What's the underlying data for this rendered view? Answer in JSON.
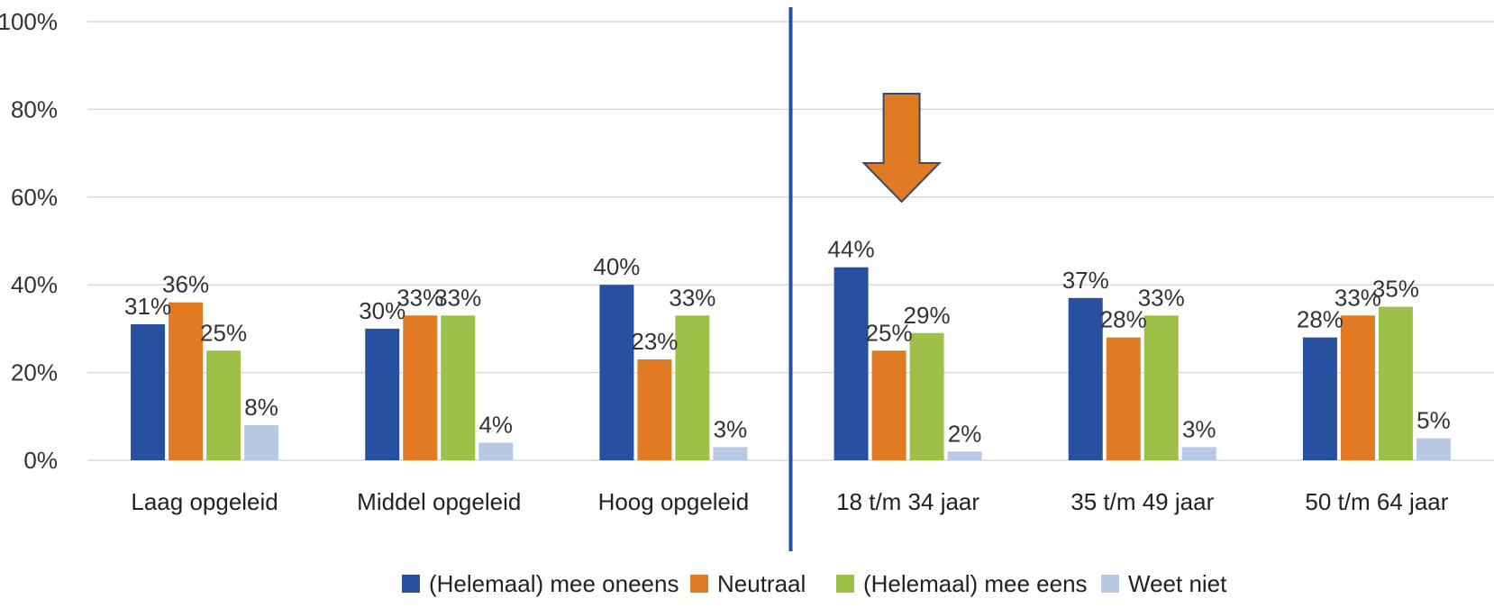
{
  "chart_data": {
    "type": "bar",
    "categories": [
      "Laag opgeleid",
      "Middel opgeleid",
      "Hoog opgeleid",
      "18 t/m 34 jaar",
      "35 t/m 49 jaar",
      "50 t/m 64 jaar"
    ],
    "series": [
      {
        "name": "(Helemaal) mee oneens",
        "color": "#2750A0",
        "values": [
          31,
          30,
          40,
          44,
          37,
          28
        ]
      },
      {
        "name": "Neutraal",
        "color": "#E07B24",
        "values": [
          36,
          33,
          23,
          25,
          28,
          33
        ]
      },
      {
        "name": "(Helemaal) mee eens",
        "color": "#9DC148",
        "values": [
          25,
          33,
          33,
          29,
          33,
          35
        ]
      },
      {
        "name": "Weet niet",
        "color": "#B8C9E4",
        "values": [
          8,
          4,
          3,
          2,
          3,
          5
        ]
      }
    ],
    "data_labels": [
      [
        "31%",
        "36%",
        "25%",
        "8%"
      ],
      [
        "30%",
        "33%",
        "33%",
        "4%"
      ],
      [
        "40%",
        "23%",
        "33%",
        "3%"
      ],
      [
        "44%",
        "25%",
        "29%",
        "2%"
      ],
      [
        "37%",
        "28%",
        "33%",
        "3%"
      ],
      [
        "28%",
        "33%",
        "35%",
        "5%"
      ]
    ],
    "yticks": [
      "0%",
      "20%",
      "40%",
      "60%",
      "80%",
      "100%"
    ],
    "ylim": [
      0,
      100
    ],
    "grid": true,
    "legend_position": "bottom",
    "annotations": {
      "divider_color": "#2750A0",
      "divider_after_category_index": 2,
      "arrow_color": "#E07B24",
      "arrow_stroke": "#3A4A6B",
      "arrow_category_index": 3,
      "arrow_direction": "down"
    }
  }
}
